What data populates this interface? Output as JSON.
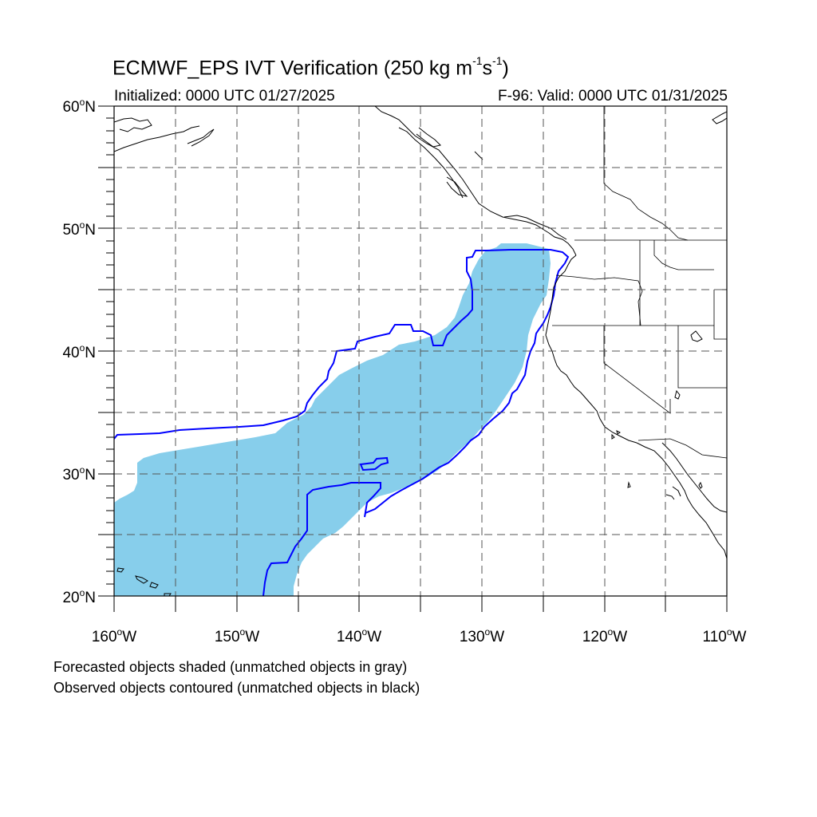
{
  "map": {
    "title_prefix": "ECMWF_EPS IVT Verification (250 kg m",
    "title_exp1": "-1",
    "title_mid": "s",
    "title_exp2": "-1",
    "title_suffix": ")",
    "initialized": "Initialized: 0000 UTC 01/27/2025",
    "valid": "F-96: Valid: 0000 UTC 01/31/2025",
    "footnote_forecast": "Forecasted objects shaded (unmatched objects in gray)",
    "footnote_observed": "Observed objects contoured (unmatched objects in black)",
    "extent": {
      "lon_min": -160,
      "lon_max": -110,
      "lat_min": 20,
      "lat_max": 60
    },
    "lat_labels": [
      {
        "value": 60,
        "deg": "60",
        "hem": "N"
      },
      {
        "value": 50,
        "deg": "50",
        "hem": "N"
      },
      {
        "value": 40,
        "deg": "40",
        "hem": "N"
      },
      {
        "value": 30,
        "deg": "30",
        "hem": "N"
      },
      {
        "value": 20,
        "deg": "20",
        "hem": "N"
      }
    ],
    "lon_labels": [
      {
        "value": -160,
        "deg": "160",
        "hem": "W"
      },
      {
        "value": -150,
        "deg": "150",
        "hem": "W"
      },
      {
        "value": -140,
        "deg": "140",
        "hem": "W"
      },
      {
        "value": -130,
        "deg": "130",
        "hem": "W"
      },
      {
        "value": -120,
        "deg": "120",
        "hem": "W"
      },
      {
        "value": -110,
        "deg": "110",
        "hem": "W"
      }
    ],
    "gridline_lats": [
      25,
      30,
      35,
      40,
      45,
      50,
      55
    ],
    "gridline_lons": [
      -155,
      -150,
      -145,
      -140,
      -135,
      -130,
      -125,
      -120,
      -115
    ],
    "colors": {
      "forecast_shade": "#87ceeb",
      "observed_contour": "#0000ff",
      "coast": "#000000",
      "grid": "#555555"
    }
  }
}
